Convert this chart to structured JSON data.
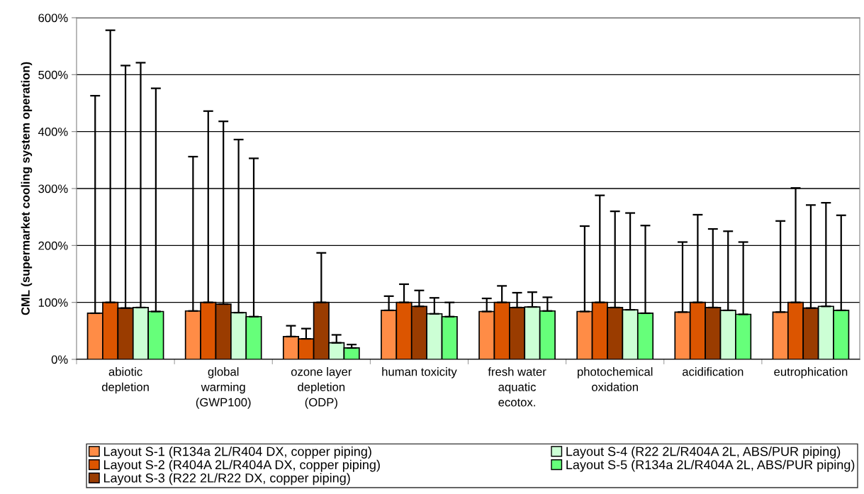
{
  "chart_data": {
    "type": "bar",
    "ylabel": "CML (supermarket cooling system operation)",
    "categories": [
      "abiotic\ndepletion",
      "global\nwarming\n(GWP100)",
      "ozone layer\ndepletion\n(ODP)",
      "human toxicity",
      "fresh water\naquatic\necotox.",
      "photochemical\noxidation",
      "acidification",
      "eutrophication"
    ],
    "series": [
      {
        "name": "Layout S-1 (R134a 2L/R404 DX, copper piping)",
        "color": "#ff8c46",
        "values": [
          81,
          85,
          40,
          86,
          84,
          84,
          83,
          83
        ],
        "errors": [
          [
            81,
            463
          ],
          [
            85,
            356
          ],
          [
            40,
            59
          ],
          [
            86,
            111
          ],
          [
            84,
            107
          ],
          [
            84,
            234
          ],
          [
            83,
            206
          ],
          [
            83,
            243
          ]
        ]
      },
      {
        "name": "Layout S-2 (R404A 2L/R404A DX, copper piping)",
        "color": "#dc5500",
        "values": [
          100,
          100,
          36,
          100,
          100,
          100,
          100,
          100
        ],
        "errors": [
          [
            100,
            578
          ],
          [
            100,
            436
          ],
          [
            36,
            54
          ],
          [
            100,
            132
          ],
          [
            100,
            129
          ],
          [
            100,
            288
          ],
          [
            100,
            254
          ],
          [
            100,
            301
          ]
        ]
      },
      {
        "name": "Layout S-3 (R22 2L/R22 DX, copper piping)",
        "color": "#9a3c00",
        "values": [
          90,
          97,
          100,
          93,
          91,
          91,
          91,
          90
        ],
        "errors": [
          [
            90,
            516
          ],
          [
            97,
            418
          ],
          [
            100,
            187
          ],
          [
            93,
            121
          ],
          [
            91,
            117
          ],
          [
            91,
            260
          ],
          [
            91,
            229
          ],
          [
            90,
            271
          ]
        ]
      },
      {
        "name": "Layout S-4 (R22 2L/R404A 2L, ABS/PUR piping)",
        "color": "#ccffd5",
        "values": [
          91,
          82,
          29,
          80,
          92,
          87,
          86,
          93
        ],
        "errors": [
          [
            91,
            521
          ],
          [
            82,
            386
          ],
          [
            29,
            43
          ],
          [
            80,
            108
          ],
          [
            92,
            118
          ],
          [
            87,
            257
          ],
          [
            86,
            225
          ],
          [
            93,
            275
          ]
        ]
      },
      {
        "name": "Layout S-5 (R134a 2L/R404A 2L, ABS/PUR piping)",
        "color": "#66ff7a",
        "values": [
          84,
          75,
          20,
          75,
          85,
          81,
          79,
          86
        ],
        "errors": [
          [
            84,
            476
          ],
          [
            75,
            353
          ],
          [
            20,
            26
          ],
          [
            75,
            100
          ],
          [
            85,
            109
          ],
          [
            81,
            235
          ],
          [
            79,
            206
          ],
          [
            86,
            253
          ]
        ]
      }
    ],
    "ylim": [
      0,
      600
    ],
    "yticks": [
      {
        "value": 0,
        "label": "0%"
      },
      {
        "value": 100,
        "label": "100%"
      },
      {
        "value": 200,
        "label": "200%"
      },
      {
        "value": 300,
        "label": "300%"
      },
      {
        "value": 400,
        "label": "400%"
      },
      {
        "value": 500,
        "label": "500%"
      },
      {
        "value": 600,
        "label": "600%"
      }
    ],
    "grid": "y",
    "legend": "bottom"
  }
}
